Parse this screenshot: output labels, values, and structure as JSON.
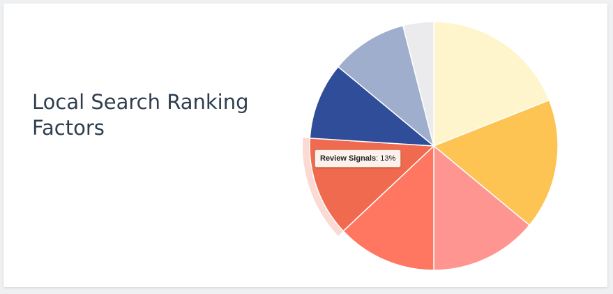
{
  "title": "Local Search Ranking Factors",
  "chart_data": {
    "type": "pie",
    "title": "Local Search Ranking Factors",
    "slices": [
      {
        "value": 19,
        "color": "#fff5cc"
      },
      {
        "value": 17,
        "color": "#fdc453"
      },
      {
        "value": 14,
        "color": "#ff9591"
      },
      {
        "value": 13,
        "color": "#ff7661"
      },
      {
        "name": "Review Signals",
        "value": 13,
        "color": "#ef6a4e",
        "highlighted": true
      },
      {
        "value": 10,
        "color": "#2f4d98"
      },
      {
        "value": 10,
        "color": "#9eaecc"
      },
      {
        "value": 4,
        "color": "#ebeaec"
      }
    ],
    "start_angle_deg": 0,
    "direction": "clockwise"
  },
  "tooltip": {
    "label": "Review Signals",
    "separator": ": ",
    "value": "13%"
  }
}
